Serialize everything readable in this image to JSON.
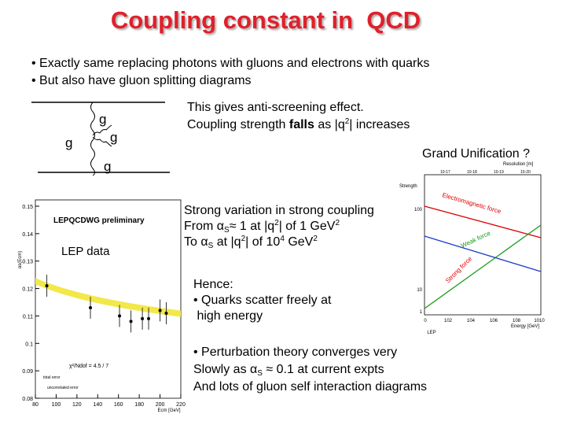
{
  "title": "Coupling constant in  QCD",
  "intro": [
    [
      "• Exactly same replacing photons with gluons and electrons with quarks"
    ],
    [
      "• But also have gluon splitting diagrams"
    ]
  ],
  "diagram": {
    "labels": [
      "g",
      "g",
      "g",
      "g"
    ]
  },
  "anti_screening": [
    [
      "This gives anti-screening effect."
    ],
    [
      "Coupling strength ",
      "falls",
      " as |q",
      "2",
      "| increases"
    ]
  ],
  "grand_unification": "Grand Unification ?",
  "strong_variation": [
    [
      "Strong variation in strong coupling"
    ],
    [
      "From ",
      "α",
      "S",
      "≈ 1 at |q",
      "2",
      "| of 1 GeV",
      "2"
    ],
    [
      "To ",
      "α",
      "S",
      " at |q",
      "2",
      "| of 10",
      "4",
      " GeV",
      "2"
    ]
  ],
  "hence": [
    [
      "Hence:"
    ],
    [
      "• Quarks scatter freely at"
    ],
    [
      " high energy"
    ]
  ],
  "perturbation": [
    [
      "• Perturbation theory converges very"
    ],
    [
      "Slowly as ",
      "α",
      "S",
      " ≈ 0.1 at current expts"
    ],
    [
      "And lots of gluon self interaction diagrams"
    ]
  ],
  "lep_plot": {
    "header": "LEPQCDWG preliminary",
    "label": "LEP data",
    "chi": "χ²/Ndof = 4.5 / 7",
    "ylabel": "αs(Ecm)",
    "xlabel": "Ecm [GeV]",
    "legend": [
      "total error",
      "uncorrelated error"
    ],
    "xlim": [
      80,
      220
    ],
    "ylim": [
      0.08,
      0.15
    ],
    "xticks": [
      80,
      100,
      120,
      140,
      160,
      180,
      200,
      220
    ],
    "yticks": [
      0.08,
      0.09,
      {
        "value": 0.1,
        "label": "0.1"
      },
      0.11,
      0.12,
      0.13,
      0.14,
      0.15
    ],
    "x": [
      91,
      133,
      161,
      172,
      183,
      189,
      200,
      206
    ],
    "values": [
      0.121,
      0.113,
      0.11,
      0.108,
      0.109,
      0.109,
      0.112,
      0.111
    ]
  },
  "unification_plot": {
    "resolution": "Resolution [m]",
    "top_ticks": [
      "10-17",
      "10-18",
      "10-19",
      "10-20"
    ],
    "strength": "Strength",
    "yticks": [
      "100",
      "10",
      "1"
    ],
    "xticks": [
      "0",
      "102",
      "104",
      "106",
      "108",
      "1010"
    ],
    "xlabel": "Energy [GeV]",
    "lep": "LEP",
    "forces": [
      "Electromagnetic force",
      "Weak force",
      "Strong force"
    ]
  }
}
